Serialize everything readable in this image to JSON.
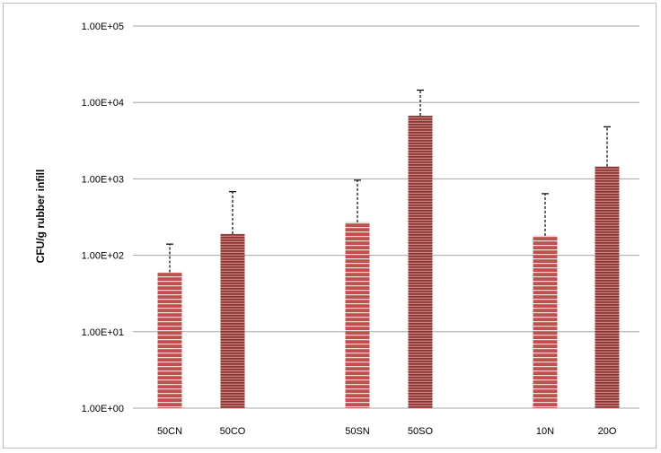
{
  "chart_data": {
    "type": "bar",
    "title": "",
    "xlabel": "",
    "ylabel": "CFU/g rubber infill",
    "yscale": "log",
    "ylim": [
      1,
      100000
    ],
    "yticks": [
      1,
      10,
      100,
      1000,
      10000,
      100000
    ],
    "ytick_labels": [
      "1.00E+00",
      "1.00E+01",
      "1.00E+02",
      "1.00E+03",
      "1.00E+04",
      "1.00E+05"
    ],
    "grid": true,
    "legend": "none",
    "colors": {
      "bar": "#c0504d",
      "stripe_light": "#f2dcdb",
      "stripe_dark": "#7b2d2b",
      "grid": "#a6a6a6",
      "error_bar": "#000000"
    },
    "categories": [
      "50CN",
      "50CO",
      "50SN",
      "50SO",
      "10N",
      "20O"
    ],
    "values": [
      60,
      190,
      270,
      6700,
      180,
      1450
    ],
    "error_upper": [
      140,
      680,
      960,
      14500,
      640,
      4800
    ],
    "patterns": [
      "horizontal",
      "dense",
      "horizontal",
      "dense",
      "horizontal",
      "dense"
    ]
  }
}
